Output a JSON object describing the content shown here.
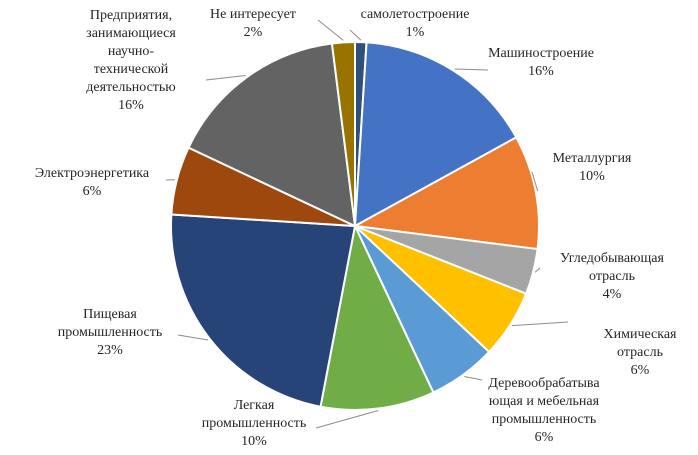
{
  "chart_data": {
    "type": "pie",
    "title": "",
    "slices": [
      {
        "label": "самолетостроение",
        "lines": [
          "самолетостроение"
        ],
        "pct_text": "1%",
        "value": 1,
        "color": "#2f4f7f"
      },
      {
        "label": "Машиностроение",
        "lines": [
          "Машиностроение"
        ],
        "pct_text": "16%",
        "value": 16,
        "color": "#4472c4"
      },
      {
        "label": "Металлургия",
        "lines": [
          "Металлургия"
        ],
        "pct_text": "10%",
        "value": 10,
        "color": "#ed7d31"
      },
      {
        "label": "Угледобывающая отрасль",
        "lines": [
          "Угледобывающая",
          "отрасль"
        ],
        "pct_text": "4%",
        "value": 4,
        "color": "#a5a5a5"
      },
      {
        "label": "Химическая отрасль",
        "lines": [
          "Химическая",
          "отрасль"
        ],
        "pct_text": "6%",
        "value": 6,
        "color": "#ffc000"
      },
      {
        "label": "Деревообрабатывающая и мебельная промышленность",
        "lines": [
          "Деревообрабатыва",
          "ющая и мебельная",
          "промышленность"
        ],
        "pct_text": "6%",
        "value": 6,
        "color": "#5b9bd5"
      },
      {
        "label": "Легкая промышленность",
        "lines": [
          "Легкая",
          "промышленность"
        ],
        "pct_text": "10%",
        "value": 10,
        "color": "#70ad47"
      },
      {
        "label": "Пищевая промышленность",
        "lines": [
          "Пищевая",
          "промышленность"
        ],
        "pct_text": "23%",
        "value": 23,
        "color": "#264478"
      },
      {
        "label": "Электроэнергетика",
        "lines": [
          "Электроэнергетика"
        ],
        "pct_text": "6%",
        "value": 6,
        "color": "#9e480e"
      },
      {
        "label": "Предприятия, занимающиеся научно-технической деятельностью",
        "lines": [
          "Предприятия,",
          "занимающиеся",
          "научно-",
          "технической",
          "деятельностью"
        ],
        "pct_text": "16%",
        "value": 16,
        "color": "#636363"
      },
      {
        "label": "Не интересует",
        "lines": [
          "Не интересует"
        ],
        "pct_text": "2%",
        "value": 2,
        "color": "#997300"
      }
    ]
  }
}
